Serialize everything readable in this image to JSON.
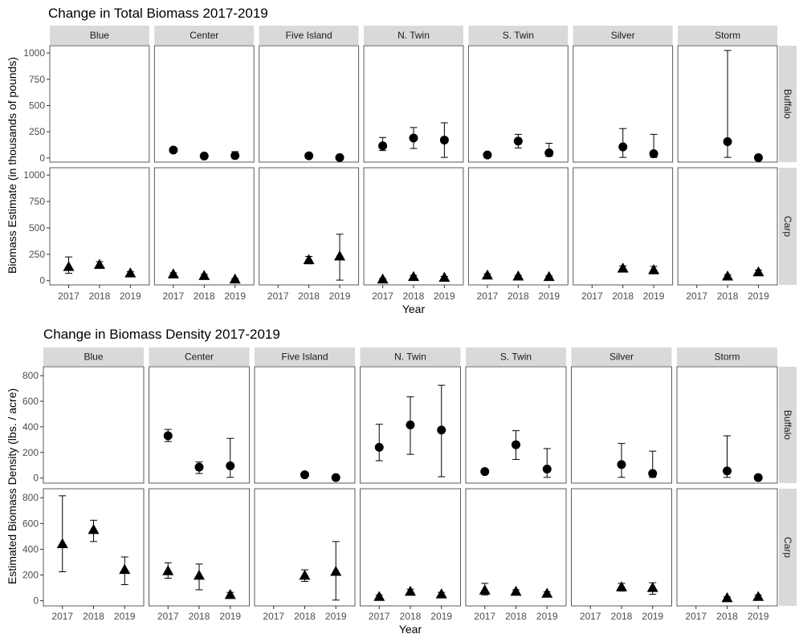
{
  "chart_data": [
    {
      "type": "scatter",
      "title": "Change in Total Biomass 2017-2019",
      "xlabel": "Year",
      "ylabel": "Biomass Estimate (in thousands of pounds)",
      "ylim": [
        -40,
        1070
      ],
      "y_ticks": [
        0,
        250,
        500,
        750,
        1000
      ],
      "x_ticks": [
        "2017",
        "2018",
        "2019"
      ],
      "facet_columns": [
        "Blue",
        "Center",
        "Five Island",
        "N. Twin",
        "S. Twin",
        "Silver",
        "Storm"
      ],
      "facet_rows": [
        "Buffalo",
        "Carp"
      ],
      "markers": {
        "Buffalo": "circle",
        "Carp": "triangle"
      },
      "grid": false,
      "series": [
        {
          "species": "Buffalo",
          "lake": "Blue",
          "points": []
        },
        {
          "species": "Buffalo",
          "lake": "Center",
          "points": [
            {
              "x": "2017",
              "y": 75,
              "lo": 60,
              "hi": 90
            },
            {
              "x": "2018",
              "y": 18,
              "lo": 10,
              "hi": 26
            },
            {
              "x": "2019",
              "y": 22,
              "lo": 0,
              "hi": 60
            }
          ]
        },
        {
          "species": "Buffalo",
          "lake": "Five Island",
          "points": [
            {
              "x": "2018",
              "y": 20,
              "lo": 12,
              "hi": 28
            },
            {
              "x": "2019",
              "y": 3,
              "lo": 0,
              "hi": 8
            }
          ]
        },
        {
          "species": "Buffalo",
          "lake": "N. Twin",
          "points": [
            {
              "x": "2017",
              "y": 115,
              "lo": 70,
              "hi": 195
            },
            {
              "x": "2018",
              "y": 190,
              "lo": 90,
              "hi": 290
            },
            {
              "x": "2019",
              "y": 170,
              "lo": 5,
              "hi": 335
            }
          ]
        },
        {
          "species": "Buffalo",
          "lake": "S. Twin",
          "points": [
            {
              "x": "2017",
              "y": 28,
              "lo": 20,
              "hi": 36
            },
            {
              "x": "2018",
              "y": 160,
              "lo": 95,
              "hi": 225
            },
            {
              "x": "2019",
              "y": 48,
              "lo": 15,
              "hi": 140
            }
          ]
        },
        {
          "species": "Buffalo",
          "lake": "Silver",
          "points": [
            {
              "x": "2018",
              "y": 105,
              "lo": 5,
              "hi": 280
            },
            {
              "x": "2019",
              "y": 40,
              "lo": 5,
              "hi": 225
            }
          ]
        },
        {
          "species": "Buffalo",
          "lake": "Storm",
          "points": [
            {
              "x": "2018",
              "y": 155,
              "lo": 5,
              "hi": 1025
            },
            {
              "x": "2019",
              "y": 2,
              "lo": 0,
              "hi": 8
            }
          ]
        },
        {
          "species": "Carp",
          "lake": "Blue",
          "points": [
            {
              "x": "2017",
              "y": 130,
              "lo": 70,
              "hi": 225
            },
            {
              "x": "2018",
              "y": 150,
              "lo": 120,
              "hi": 180
            },
            {
              "x": "2019",
              "y": 70,
              "lo": 55,
              "hi": 85
            }
          ]
        },
        {
          "species": "Carp",
          "lake": "Center",
          "points": [
            {
              "x": "2017",
              "y": 60,
              "lo": 45,
              "hi": 75
            },
            {
              "x": "2018",
              "y": 45,
              "lo": 30,
              "hi": 60
            },
            {
              "x": "2019",
              "y": 12,
              "lo": 5,
              "hi": 20
            }
          ]
        },
        {
          "species": "Carp",
          "lake": "Five Island",
          "points": [
            {
              "x": "2018",
              "y": 195,
              "lo": 160,
              "hi": 230
            },
            {
              "x": "2019",
              "y": 230,
              "lo": 5,
              "hi": 440
            }
          ]
        },
        {
          "species": "Carp",
          "lake": "N. Twin",
          "points": [
            {
              "x": "2017",
              "y": 12,
              "lo": 5,
              "hi": 20
            },
            {
              "x": "2018",
              "y": 35,
              "lo": 20,
              "hi": 50
            },
            {
              "x": "2019",
              "y": 28,
              "lo": 15,
              "hi": 40
            }
          ]
        },
        {
          "species": "Carp",
          "lake": "S. Twin",
          "points": [
            {
              "x": "2017",
              "y": 50,
              "lo": 35,
              "hi": 65
            },
            {
              "x": "2018",
              "y": 40,
              "lo": 30,
              "hi": 50
            },
            {
              "x": "2019",
              "y": 35,
              "lo": 25,
              "hi": 45
            }
          ]
        },
        {
          "species": "Carp",
          "lake": "Silver",
          "points": [
            {
              "x": "2018",
              "y": 115,
              "lo": 90,
              "hi": 140
            },
            {
              "x": "2019",
              "y": 100,
              "lo": 65,
              "hi": 135
            }
          ]
        },
        {
          "species": "Carp",
          "lake": "Storm",
          "points": [
            {
              "x": "2018",
              "y": 40,
              "lo": 25,
              "hi": 55
            },
            {
              "x": "2019",
              "y": 80,
              "lo": 60,
              "hi": 100
            }
          ]
        }
      ]
    },
    {
      "type": "scatter",
      "title": "Change in Biomass Density 2017-2019",
      "xlabel": "Year",
      "ylabel": "Estimated Biomass Density (lbs. / acre)",
      "ylim": [
        -40,
        870
      ],
      "y_ticks": [
        0,
        200,
        400,
        600,
        800
      ],
      "x_ticks": [
        "2017",
        "2018",
        "2019"
      ],
      "facet_columns": [
        "Blue",
        "Center",
        "Five Island",
        "N. Twin",
        "S. Twin",
        "Silver",
        "Storm"
      ],
      "facet_rows": [
        "Buffalo",
        "Carp"
      ],
      "markers": {
        "Buffalo": "circle",
        "Carp": "triangle"
      },
      "grid": false,
      "series": [
        {
          "species": "Buffalo",
          "lake": "Blue",
          "points": []
        },
        {
          "species": "Buffalo",
          "lake": "Center",
          "points": [
            {
              "x": "2017",
              "y": 330,
              "lo": 285,
              "hi": 380
            },
            {
              "x": "2018",
              "y": 85,
              "lo": 35,
              "hi": 125
            },
            {
              "x": "2019",
              "y": 95,
              "lo": 5,
              "hi": 310
            }
          ]
        },
        {
          "species": "Buffalo",
          "lake": "Five Island",
          "points": [
            {
              "x": "2018",
              "y": 25,
              "lo": 15,
              "hi": 35
            },
            {
              "x": "2019",
              "y": 3,
              "lo": 0,
              "hi": 10
            }
          ]
        },
        {
          "species": "Buffalo",
          "lake": "N. Twin",
          "points": [
            {
              "x": "2017",
              "y": 240,
              "lo": 135,
              "hi": 420
            },
            {
              "x": "2018",
              "y": 415,
              "lo": 185,
              "hi": 635
            },
            {
              "x": "2019",
              "y": 375,
              "lo": 10,
              "hi": 725
            }
          ]
        },
        {
          "species": "Buffalo",
          "lake": "S. Twin",
          "points": [
            {
              "x": "2017",
              "y": 50,
              "lo": 35,
              "hi": 65
            },
            {
              "x": "2018",
              "y": 260,
              "lo": 145,
              "hi": 370
            },
            {
              "x": "2019",
              "y": 70,
              "lo": 5,
              "hi": 230
            }
          ]
        },
        {
          "species": "Buffalo",
          "lake": "Silver",
          "points": [
            {
              "x": "2018",
              "y": 105,
              "lo": 5,
              "hi": 270
            },
            {
              "x": "2019",
              "y": 35,
              "lo": 5,
              "hi": 210
            }
          ]
        },
        {
          "species": "Buffalo",
          "lake": "Storm",
          "points": [
            {
              "x": "2018",
              "y": 55,
              "lo": 5,
              "hi": 330
            },
            {
              "x": "2019",
              "y": 3,
              "lo": 0,
              "hi": 10
            }
          ]
        },
        {
          "species": "Carp",
          "lake": "Blue",
          "points": [
            {
              "x": "2017",
              "y": 440,
              "lo": 225,
              "hi": 815
            },
            {
              "x": "2018",
              "y": 550,
              "lo": 460,
              "hi": 625
            },
            {
              "x": "2019",
              "y": 240,
              "lo": 125,
              "hi": 340
            }
          ]
        },
        {
          "species": "Carp",
          "lake": "Center",
          "points": [
            {
              "x": "2017",
              "y": 230,
              "lo": 175,
              "hi": 295
            },
            {
              "x": "2018",
              "y": 195,
              "lo": 85,
              "hi": 285
            },
            {
              "x": "2019",
              "y": 45,
              "lo": 25,
              "hi": 65
            }
          ]
        },
        {
          "species": "Carp",
          "lake": "Five Island",
          "points": [
            {
              "x": "2018",
              "y": 195,
              "lo": 150,
              "hi": 240
            },
            {
              "x": "2019",
              "y": 225,
              "lo": 5,
              "hi": 460
            }
          ]
        },
        {
          "species": "Carp",
          "lake": "N. Twin",
          "points": [
            {
              "x": "2017",
              "y": 30,
              "lo": 15,
              "hi": 45
            },
            {
              "x": "2018",
              "y": 70,
              "lo": 50,
              "hi": 90
            },
            {
              "x": "2019",
              "y": 50,
              "lo": 35,
              "hi": 65
            }
          ]
        },
        {
          "species": "Carp",
          "lake": "S. Twin",
          "points": [
            {
              "x": "2017",
              "y": 80,
              "lo": 45,
              "hi": 135
            },
            {
              "x": "2018",
              "y": 70,
              "lo": 55,
              "hi": 85
            },
            {
              "x": "2019",
              "y": 55,
              "lo": 40,
              "hi": 70
            }
          ]
        },
        {
          "species": "Carp",
          "lake": "Silver",
          "points": [
            {
              "x": "2018",
              "y": 105,
              "lo": 75,
              "hi": 135
            },
            {
              "x": "2019",
              "y": 100,
              "lo": 50,
              "hi": 140
            }
          ]
        },
        {
          "species": "Carp",
          "lake": "Storm",
          "points": [
            {
              "x": "2018",
              "y": 20,
              "lo": 10,
              "hi": 30
            },
            {
              "x": "2019",
              "y": 30,
              "lo": 15,
              "hi": 45
            }
          ]
        }
      ]
    }
  ],
  "colors": {
    "strip_fill": "#d9d9d9",
    "panel_border": "#595959",
    "marker": "#000000",
    "axis_text": "#4d4d4d",
    "title_text": "#000000"
  }
}
